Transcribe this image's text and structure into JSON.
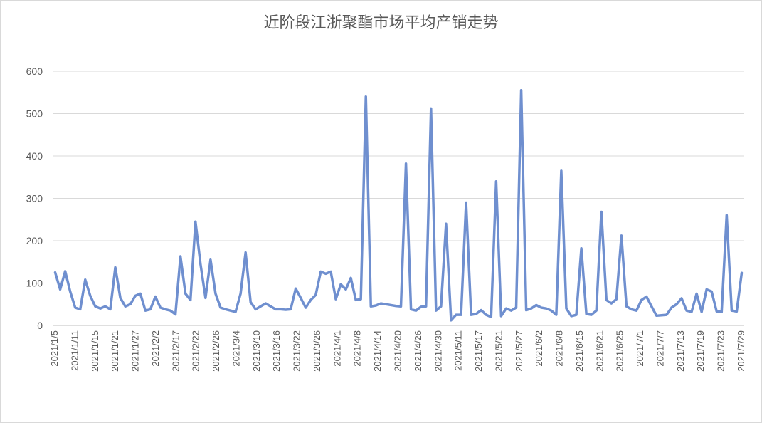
{
  "chart_data": {
    "type": "line",
    "title": "近阶段江浙聚酯市场平均产销走势",
    "xlabel": "",
    "ylabel": "",
    "ylim": [
      0,
      600
    ],
    "yticks": [
      0,
      100,
      200,
      300,
      400,
      500,
      600
    ],
    "grid": true,
    "legend": "none",
    "x_tick_labels": [
      "2021/1/5",
      "2021/1/11",
      "2021/1/15",
      "2021/1/21",
      "2021/1/27",
      "2021/2/2",
      "2021/2/17",
      "2021/2/22",
      "2021/2/26",
      "2021/3/4",
      "2021/3/10",
      "2021/3/16",
      "2021/3/22",
      "2021/3/26",
      "2021/4/1",
      "2021/4/8",
      "2021/4/14",
      "2021/4/20",
      "2021/4/26",
      "2021/4/30",
      "2021/5/11",
      "2021/5/17",
      "2021/5/21",
      "2021/5/27",
      "2021/6/2",
      "2021/6/8",
      "2021/6/15",
      "2021/6/21",
      "2021/6/25",
      "2021/7/1",
      "2021/7/7",
      "2021/7/13",
      "2021/7/19",
      "2021/7/23",
      "2021/7/29"
    ],
    "series": [
      {
        "color": "#6f8fcf",
        "values": [
          125,
          85,
          128,
          80,
          42,
          38,
          108,
          70,
          45,
          40,
          45,
          38,
          137,
          65,
          45,
          50,
          70,
          75,
          35,
          38,
          68,
          42,
          38,
          35,
          26,
          163,
          75,
          60,
          245,
          145,
          65,
          155,
          75,
          42,
          38,
          35,
          32,
          75,
          172,
          55,
          38,
          45,
          52,
          45,
          38,
          38,
          37,
          38,
          87,
          65,
          42,
          60,
          72,
          127,
          122,
          127,
          62,
          97,
          85,
          112,
          60,
          62,
          540,
          45,
          47,
          52,
          50,
          48,
          46,
          45,
          382,
          38,
          35,
          44,
          45,
          512,
          35,
          45,
          240,
          12,
          25,
          25,
          290,
          25,
          27,
          36,
          25,
          20,
          340,
          22,
          40,
          35,
          42,
          555,
          36,
          40,
          48,
          42,
          40,
          35,
          25,
          365,
          40,
          22,
          25,
          182,
          27,
          25,
          35,
          268,
          60,
          52,
          62,
          212,
          45,
          38,
          35,
          60,
          68,
          45,
          23,
          24,
          25,
          42,
          50,
          64,
          35,
          32,
          75,
          32,
          85,
          80,
          33,
          32,
          260,
          35,
          33,
          124
        ]
      }
    ]
  }
}
